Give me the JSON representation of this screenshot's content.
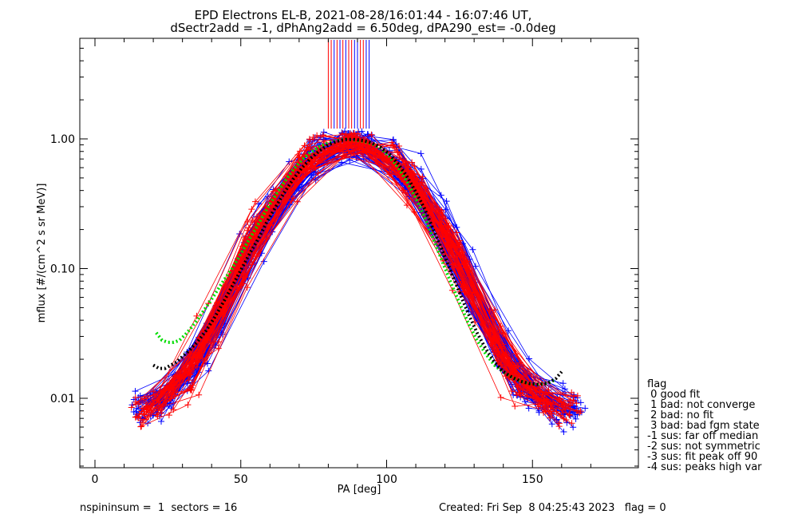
{
  "chart_data": {
    "type": "line",
    "title": "EPD Electrons EL-B, 2021-08-28/16:01:44 - 16:07:46 UT,",
    "subtitle": "dSectr2add = -1, dPhAng2add = 6.50deg, dPA290_est=  -0.0deg",
    "xlabel": "PA [deg]",
    "ylabel": "mflux [#/(cm^2 s sr MeV)]",
    "xlim": [
      -5,
      185
    ],
    "ylim": [
      0.003,
      6.0
    ],
    "yscale": "log",
    "x_ticks": [
      0,
      50,
      100,
      150
    ],
    "x_tick_labels": [
      "0",
      "50",
      "100",
      "150"
    ],
    "y_ticks": [
      0.01,
      0.1,
      1.0
    ],
    "y_tick_labels": [
      "0.01",
      "0.10",
      "1.00"
    ],
    "grid": false,
    "colors": {
      "red": "#ff0000",
      "blue": "#0000ff",
      "green": "#00dd00",
      "black": "#000000"
    },
    "vertical_lines": {
      "red": [
        80,
        81,
        83,
        85,
        87,
        88,
        91,
        92
      ],
      "blue": [
        82,
        84,
        86,
        89,
        90,
        93,
        94
      ],
      "y_from": 1.2
    },
    "green_curve": {
      "x": [
        21,
        23,
        25,
        27,
        29,
        31,
        33,
        35,
        38,
        41,
        44,
        47,
        50,
        53,
        56,
        59,
        62,
        65,
        68,
        71,
        74,
        77,
        80,
        83,
        86,
        89,
        92,
        95,
        98,
        101,
        104,
        107,
        110,
        113,
        116,
        119,
        122,
        125,
        128,
        131,
        134,
        137,
        140,
        143,
        146,
        149,
        152,
        155,
        158
      ],
      "y": [
        0.032,
        0.028,
        0.027,
        0.027,
        0.028,
        0.031,
        0.035,
        0.04,
        0.05,
        0.063,
        0.08,
        0.1,
        0.13,
        0.17,
        0.22,
        0.29,
        0.37,
        0.47,
        0.58,
        0.69,
        0.79,
        0.87,
        0.93,
        0.97,
        0.99,
        0.98,
        0.96,
        0.92,
        0.84,
        0.73,
        0.6,
        0.47,
        0.35,
        0.25,
        0.17,
        0.115,
        0.078,
        0.054,
        0.038,
        0.028,
        0.022,
        0.018,
        0.016,
        0.0145,
        0.0135,
        0.013,
        0.0128,
        0.013,
        0.014
      ]
    },
    "black_curve": {
      "x": [
        20,
        22,
        24,
        26,
        28,
        30,
        32,
        35,
        38,
        41,
        44,
        47,
        50,
        53,
        56,
        59,
        62,
        65,
        68,
        71,
        74,
        77,
        80,
        83,
        86,
        89,
        92,
        95,
        98,
        101,
        104,
        107,
        110,
        113,
        116,
        119,
        122,
        125,
        128,
        131,
        134,
        137,
        140,
        143,
        146,
        149,
        152,
        155,
        158,
        160
      ],
      "y": [
        0.018,
        0.017,
        0.017,
        0.018,
        0.019,
        0.021,
        0.023,
        0.027,
        0.033,
        0.042,
        0.055,
        0.073,
        0.097,
        0.13,
        0.17,
        0.23,
        0.3,
        0.39,
        0.49,
        0.6,
        0.71,
        0.81,
        0.9,
        0.96,
        0.99,
        0.99,
        0.97,
        0.93,
        0.86,
        0.76,
        0.64,
        0.51,
        0.39,
        0.29,
        0.2,
        0.14,
        0.095,
        0.065,
        0.045,
        0.032,
        0.024,
        0.019,
        0.016,
        0.0145,
        0.0135,
        0.013,
        0.0128,
        0.013,
        0.0142,
        0.016
      ]
    },
    "legend": {
      "placement": "right",
      "items": [
        "flag",
        " 0 good fit",
        " 1 bad: not converge",
        " 2 bad: no fit",
        " 3 bad: bad fgm state",
        "-1 sus: far off median",
        "-2 sus: not symmetric",
        "-3 sus: fit peak off 90",
        "-4 sus: peaks high var"
      ]
    }
  },
  "footer": {
    "left": "nspininsum =  1  sectors = 16",
    "right": "Created: Fri Sep  8 04:25:43 2023   flag = 0"
  }
}
